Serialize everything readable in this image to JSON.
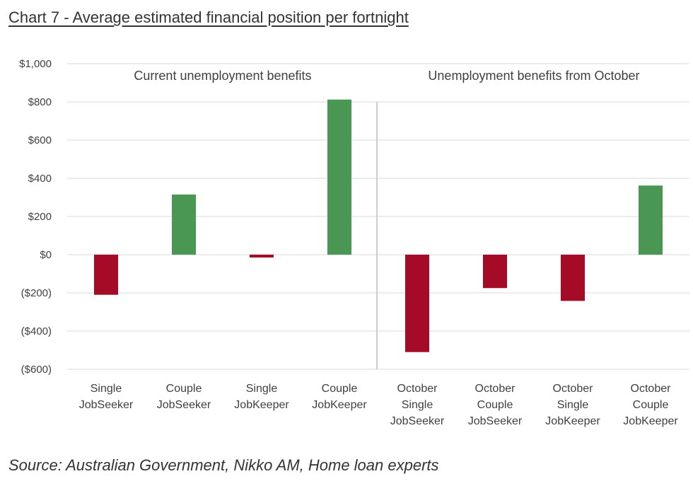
{
  "header": {
    "title": "Chart 7 - Average estimated financial position per fortnight"
  },
  "footer": {
    "source": "Source: Australian Government, Nikko AM, Home loan experts"
  },
  "colors": {
    "positive": "#4a9653",
    "negative": "#a50a26",
    "grid": "#d9d9d9",
    "divider": "#bfbfbf"
  },
  "chart_data": {
    "type": "bar",
    "title": "Chart 7 - Average estimated financial position per fortnight",
    "xlabel": "",
    "ylabel": "",
    "ylim": [
      -600,
      1000
    ],
    "yticks": [
      1000,
      800,
      600,
      400,
      200,
      0,
      -200,
      -400,
      -600
    ],
    "ytick_labels": [
      "$1,000",
      "$800",
      "$600",
      "$400",
      "$200",
      "$0",
      "($200)",
      "($400)",
      "($600)"
    ],
    "grid": true,
    "sections": [
      {
        "label": "Current unemployment benefits",
        "categories": [
          0,
          1,
          2,
          3
        ]
      },
      {
        "label": "Unemployment benefits from October",
        "categories": [
          4,
          5,
          6,
          7
        ]
      }
    ],
    "categories": [
      [
        "Single",
        "JobSeeker"
      ],
      [
        "Couple",
        "JobSeeker"
      ],
      [
        "Single",
        "JobKeeper"
      ],
      [
        "Couple",
        "JobKeeper"
      ],
      [
        "October",
        "Single",
        "JobSeeker"
      ],
      [
        "October",
        "Couple",
        "JobSeeker"
      ],
      [
        "October",
        "Single",
        "JobKeeper"
      ],
      [
        "October",
        "Couple",
        "JobKeeper"
      ]
    ],
    "values": [
      -210,
      315,
      -15,
      812,
      -510,
      -175,
      -242,
      362
    ]
  }
}
